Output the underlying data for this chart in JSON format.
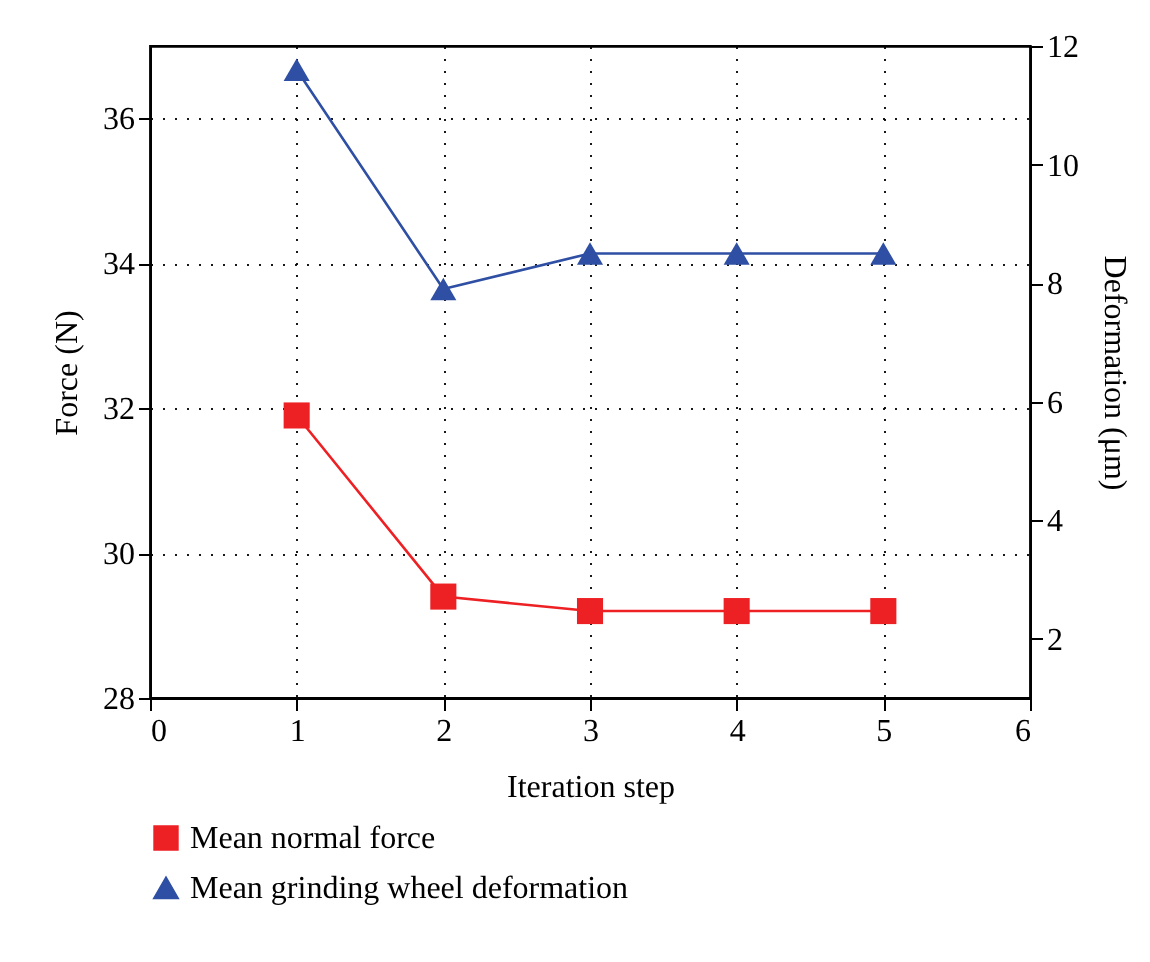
{
  "chart_data": {
    "type": "line",
    "xlabel": "Iteration step",
    "ylabel": "Force (N)",
    "y2label": "Deformation (μm)",
    "x": [
      1,
      2,
      3,
      4,
      5
    ],
    "series": [
      {
        "name": "Mean normal force",
        "color": "#ed2024",
        "marker": "square",
        "values": [
          31.9,
          29.4,
          29.2,
          29.2,
          29.2
        ]
      },
      {
        "name": "Mean grinding wheel deformation",
        "color": "#2e4fa3",
        "marker": "triangle",
        "axis": "y2",
        "values": [
          11.6,
          7.9,
          8.5,
          8.5,
          8.5
        ]
      }
    ],
    "xlim": [
      0,
      6
    ],
    "xticks": [
      0,
      1,
      2,
      3,
      4,
      5,
      6
    ],
    "ylim": [
      28,
      37
    ],
    "yticks": [
      28,
      30,
      32,
      34,
      36
    ],
    "y2lim": [
      1,
      12
    ],
    "y2ticks": [
      2,
      4,
      6,
      8,
      10,
      12
    ],
    "grid": true,
    "legend": "bottom",
    "line_style": "solid"
  }
}
